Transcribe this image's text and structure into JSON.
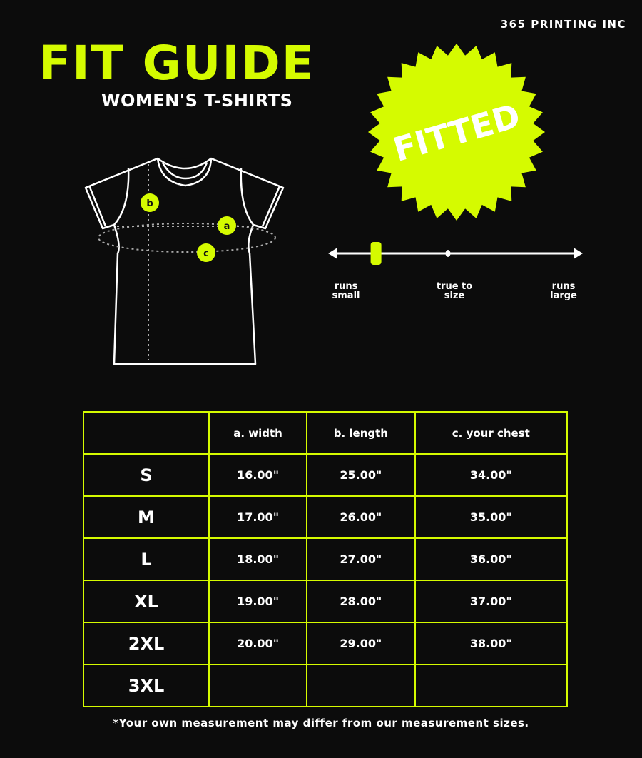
{
  "brand": "365 PRINTING INC",
  "title": "FIT GUIDE",
  "subtitle": "WOMEN'S T-SHIRTS",
  "badge": "FITTED",
  "accent_color": "#d5fb00",
  "diagram": {
    "labels": [
      "b",
      "a",
      "c"
    ]
  },
  "fit_scale": {
    "level": 0.18,
    "labels": [
      "runs small",
      "true to size",
      "runs large"
    ]
  },
  "table": {
    "headers": [
      "",
      "a. width",
      "b. length",
      "c. your chest"
    ],
    "rows": [
      [
        "S",
        "16.00\"",
        "25.00\"",
        "34.00\""
      ],
      [
        "M",
        "17.00\"",
        "26.00\"",
        "35.00\""
      ],
      [
        "L",
        "18.00\"",
        "27.00\"",
        "36.00\""
      ],
      [
        "XL",
        "19.00\"",
        "28.00\"",
        "37.00\""
      ],
      [
        "2XL",
        "20.00\"",
        "29.00\"",
        "38.00\""
      ],
      [
        "3XL",
        "",
        "",
        ""
      ]
    ]
  },
  "note": "*Your own measurement may differ from our measurement sizes."
}
